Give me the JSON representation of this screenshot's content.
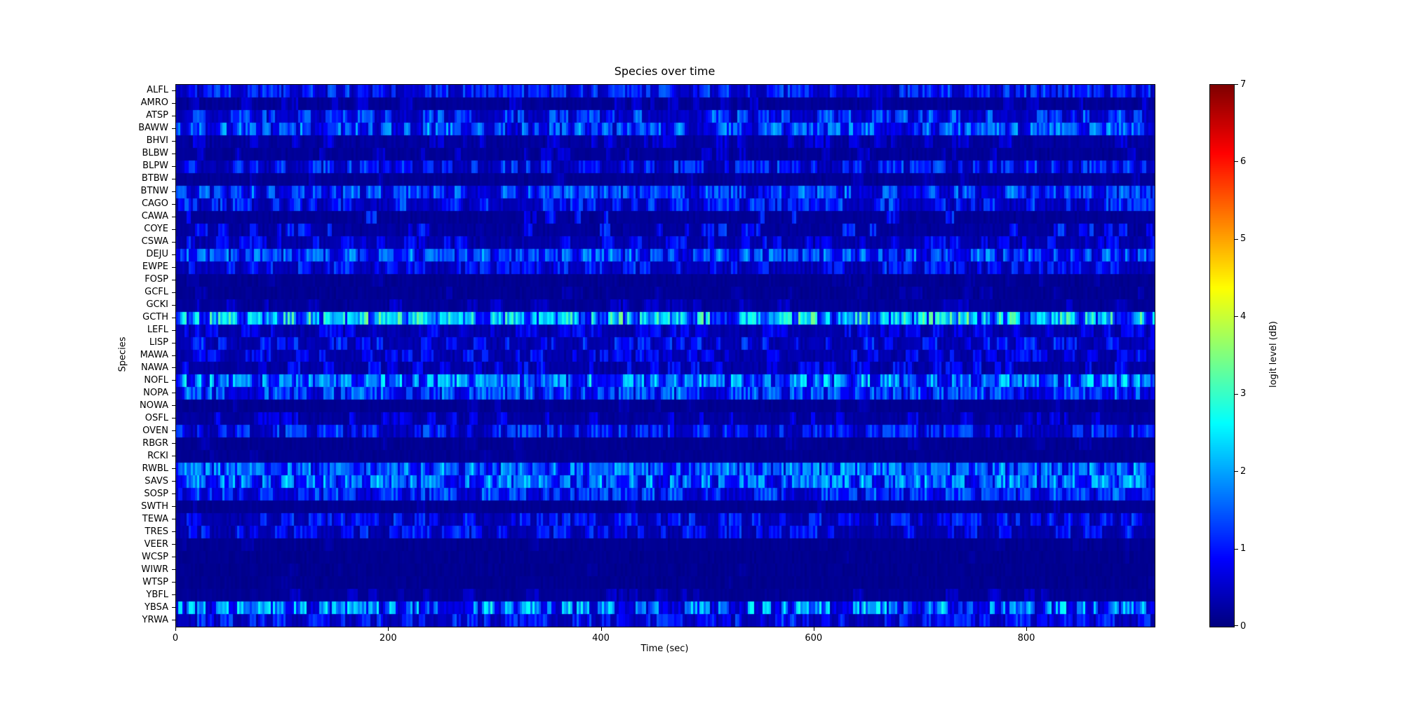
{
  "chart_data": {
    "type": "heatmap",
    "title": "Species over time",
    "xlabel": "Time (sec)",
    "ylabel": "Species",
    "x_range": [
      0,
      920
    ],
    "x_ticks": [
      0,
      200,
      400,
      600,
      800
    ],
    "value_range": [
      0,
      7
    ],
    "colormap": "jet",
    "grid": false,
    "colorbar": {
      "label": "logit level (dB)",
      "min": 0,
      "max": 7,
      "ticks": [
        0,
        1,
        2,
        3,
        4,
        5,
        6,
        7
      ],
      "position": "right"
    },
    "species": [
      {
        "code": "ALFL",
        "mean_level": 0.5,
        "burst_level": 0.8,
        "activity": 0.75
      },
      {
        "code": "AMRO",
        "mean_level": 0.15,
        "burst_level": 0.4,
        "activity": 0.15
      },
      {
        "code": "ATSP",
        "mean_level": 0.5,
        "burst_level": 1.0,
        "activity": 0.55
      },
      {
        "code": "BAWW",
        "mean_level": 0.7,
        "burst_level": 1.1,
        "activity": 0.9
      },
      {
        "code": "BHVI",
        "mean_level": 0.2,
        "burst_level": 0.5,
        "activity": 0.25
      },
      {
        "code": "BLBW",
        "mean_level": 0.15,
        "burst_level": 0.4,
        "activity": 0.15
      },
      {
        "code": "BLPW",
        "mean_level": 0.4,
        "burst_level": 0.9,
        "activity": 0.55
      },
      {
        "code": "BTBW",
        "mean_level": 0.12,
        "burst_level": 0.3,
        "activity": 0.1
      },
      {
        "code": "BTNW",
        "mean_level": 0.6,
        "burst_level": 1.0,
        "activity": 0.85
      },
      {
        "code": "CAGO",
        "mean_level": 0.45,
        "burst_level": 0.9,
        "activity": 0.6
      },
      {
        "code": "CAWA",
        "mean_level": 0.15,
        "burst_level": 0.9,
        "activity": 0.12
      },
      {
        "code": "COYE",
        "mean_level": 0.2,
        "burst_level": 0.9,
        "activity": 0.2
      },
      {
        "code": "CSWA",
        "mean_level": 0.3,
        "burst_level": 0.7,
        "activity": 0.35
      },
      {
        "code": "DEJU",
        "mean_level": 0.7,
        "burst_level": 1.0,
        "activity": 0.9
      },
      {
        "code": "EWPE",
        "mean_level": 0.4,
        "burst_level": 0.8,
        "activity": 0.5
      },
      {
        "code": "FOSP",
        "mean_level": 0.1,
        "burst_level": 0.2,
        "activity": 0.05
      },
      {
        "code": "GCFL",
        "mean_level": 0.1,
        "burst_level": 0.25,
        "activity": 0.08
      },
      {
        "code": "GCKI",
        "mean_level": 0.15,
        "burst_level": 0.4,
        "activity": 0.15
      },
      {
        "code": "GCTH",
        "mean_level": 1.2,
        "burst_level": 1.6,
        "activity": 0.95
      },
      {
        "code": "LEFL",
        "mean_level": 0.3,
        "burst_level": 0.6,
        "activity": 0.35
      },
      {
        "code": "LISP",
        "mean_level": 0.35,
        "burst_level": 0.8,
        "activity": 0.45
      },
      {
        "code": "MAWA",
        "mean_level": 0.3,
        "burst_level": 0.7,
        "activity": 0.4
      },
      {
        "code": "NAWA",
        "mean_level": 0.25,
        "burst_level": 0.7,
        "activity": 0.3
      },
      {
        "code": "NOFL",
        "mean_level": 0.9,
        "burst_level": 1.3,
        "activity": 0.9
      },
      {
        "code": "NOPA",
        "mean_level": 0.7,
        "burst_level": 1.0,
        "activity": 0.85
      },
      {
        "code": "NOWA",
        "mean_level": 0.1,
        "burst_level": 0.25,
        "activity": 0.07
      },
      {
        "code": "OSFL",
        "mean_level": 0.2,
        "burst_level": 0.6,
        "activity": 0.2
      },
      {
        "code": "OVEN",
        "mean_level": 0.45,
        "burst_level": 0.9,
        "activity": 0.6
      },
      {
        "code": "RBGR",
        "mean_level": 0.1,
        "burst_level": 0.25,
        "activity": 0.07
      },
      {
        "code": "RCKI",
        "mean_level": 0.1,
        "burst_level": 0.2,
        "activity": 0.05
      },
      {
        "code": "RWBL",
        "mean_level": 0.8,
        "burst_level": 1.1,
        "activity": 0.9
      },
      {
        "code": "SAVS",
        "mean_level": 0.85,
        "burst_level": 1.2,
        "activity": 0.9
      },
      {
        "code": "SOSP",
        "mean_level": 0.6,
        "burst_level": 0.9,
        "activity": 0.75
      },
      {
        "code": "SWTH",
        "mean_level": 0.1,
        "burst_level": 0.25,
        "activity": 0.07
      },
      {
        "code": "TEWA",
        "mean_level": 0.35,
        "burst_level": 0.8,
        "activity": 0.5
      },
      {
        "code": "TRES",
        "mean_level": 0.3,
        "burst_level": 0.8,
        "activity": 0.4
      },
      {
        "code": "VEER",
        "mean_level": 0.1,
        "burst_level": 0.2,
        "activity": 0.05
      },
      {
        "code": "WCSP",
        "mean_level": 0.08,
        "burst_level": 0.15,
        "activity": 0.03
      },
      {
        "code": "WIWR",
        "mean_level": 0.08,
        "burst_level": 0.15,
        "activity": 0.03
      },
      {
        "code": "WTSP",
        "mean_level": 0.08,
        "burst_level": 0.15,
        "activity": 0.03
      },
      {
        "code": "YBFL",
        "mean_level": 0.12,
        "burst_level": 0.4,
        "activity": 0.08
      },
      {
        "code": "YBSA",
        "mean_level": 0.7,
        "burst_level": 1.5,
        "activity": 0.65
      },
      {
        "code": "YRWA",
        "mean_level": 0.4,
        "burst_level": 0.8,
        "activity": 0.55
      }
    ]
  }
}
